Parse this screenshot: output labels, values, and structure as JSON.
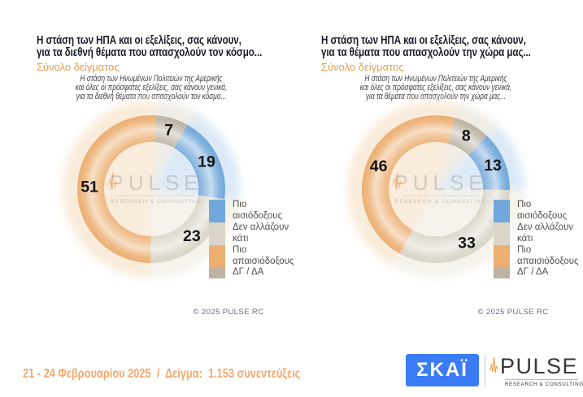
{
  "chart_data": [
    {
      "type": "donut",
      "title_line1": "Η στάση των ΗΠΑ και οι εξελίξεις, σας κάνουν,",
      "title_line2": "για τα διεθνή θέματα που απασχολούν τον κόσμο...",
      "subtitle": "Σύνολο δείγματος",
      "desc_line1": "Η στάση των Ηνωμένων Πολιτειών της Αμερικής",
      "desc_line2": "και όλες οι πρόσφατες εξελίξεις, σας κάνουν γενικά,",
      "desc_line3": "για τα διεθνή θέματα που απασχολούν τον κόσμο...",
      "categories": [
        "Πιο αισιόδοξους",
        "Δεν αλλάζουν κάτι",
        "Πιο απαισιόδοξους",
        "ΔΓ / ΔΑ"
      ],
      "values": [
        19,
        23,
        51,
        7
      ],
      "colors": [
        "#72A8DB",
        "#DAD5C8",
        "#ECAF72",
        "#BDB3A4"
      ],
      "halo_colors": [
        "#DCEAF7",
        "#F5F3EC",
        "#FAECDB",
        "#F0EDE6"
      ],
      "start_angle_deg": 4,
      "draw_order": [
        3,
        0,
        1,
        2
      ],
      "label_color": "#141414",
      "legend_position": "right"
    },
    {
      "type": "donut",
      "title_line1": "Η στάση των ΗΠΑ και οι εξελίξεις, σας κάνουν,",
      "title_line2": "για τα θέματα που απασχολούν την χώρα μας...",
      "subtitle": "Σύνολο δείγματος",
      "desc_line1": "Η στάση των Ηνωμένων Πολιτειών της Αμερικής",
      "desc_line2": "και όλες οι πρόσφατες εξελίξεις, σας κάνουν γενικά,",
      "desc_line3": "για τα θέματα που απασχολούν την χώρα μας...",
      "categories": [
        "Πιο αισιόδοξους",
        "Δεν αλλάζουν κάτι",
        "Πιο απαισιόδοξους",
        "ΔΓ / ΔΑ"
      ],
      "values": [
        13,
        33,
        46,
        8
      ],
      "colors": [
        "#72A8DB",
        "#DAD5C8",
        "#ECAF72",
        "#BDB3A4"
      ],
      "halo_colors": [
        "#DCEAF7",
        "#F5F3EC",
        "#FAECDB",
        "#F0EDE6"
      ],
      "start_angle_deg": 15,
      "draw_order": [
        3,
        0,
        1,
        2
      ],
      "label_color": "#141414",
      "legend_position": "right"
    }
  ],
  "legend": {
    "items": [
      {
        "lines": [
          "Πιο",
          "αισιόδοξους"
        ]
      },
      {
        "lines": [
          "Δεν αλλάζουν",
          "κάτι"
        ]
      },
      {
        "lines": [
          "Πιο",
          "απαισιόδοξους"
        ]
      },
      {
        "lines": [
          "ΔΓ / ΔΑ"
        ]
      }
    ]
  },
  "watermark": {
    "brand": "PULSE",
    "tagline": "RESEARCH & CONSULTING"
  },
  "footer": {
    "copyright": "©  2025  PULSE RC",
    "fieldwork": "21 - 24 Φεβρουαρίου 2025  /  Δείγμα:  1.153 συνεντεύξεις"
  },
  "logos": {
    "skai_text": "ΣΚΑΪ",
    "pulse_text": "PULSE",
    "pulse_tagline": "RESEARCH & CONSULTING"
  },
  "colors": {
    "title": "#1D1D27",
    "subtitle_orange": "#E89B4E",
    "desc_gray": "#3F3F48",
    "legend_text": "#57504B",
    "copyright_text": "#5E6F7E",
    "footer_orange": "#F4A76D",
    "skai_blue": "#3B7CF6",
    "pulse_logo_dark": "#373737",
    "pulse_logo_orange": "#F59B3E"
  }
}
